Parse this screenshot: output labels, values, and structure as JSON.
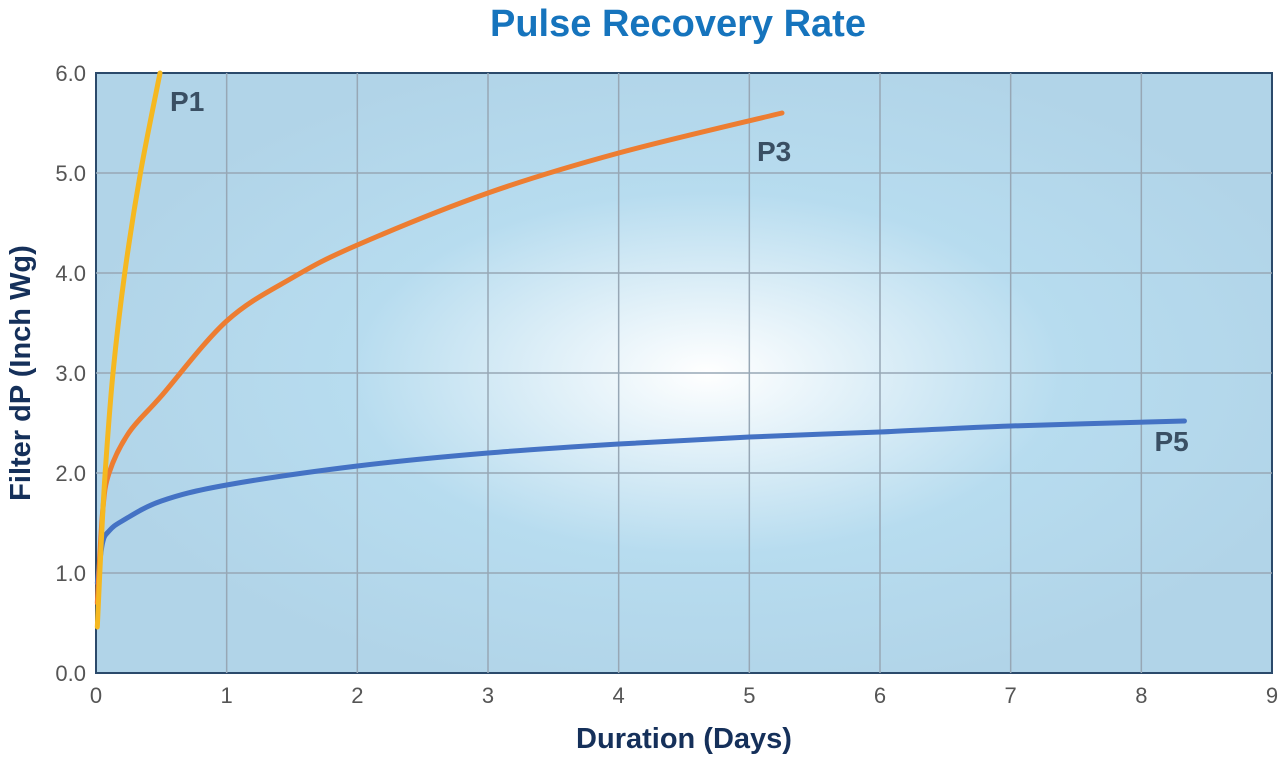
{
  "chart_data": {
    "type": "line",
    "title": "Pulse Recovery Rate",
    "xlabel": "Duration (Days)",
    "ylabel": "Filter dP (Inch Wg)",
    "xlim": [
      0,
      9
    ],
    "ylim": [
      0,
      6
    ],
    "xticks": [
      "0",
      "1",
      "2",
      "3",
      "4",
      "5",
      "6",
      "7",
      "8",
      "9"
    ],
    "yticks": [
      "0.0",
      "1.0",
      "2.0",
      "3.0",
      "4.0",
      "5.0",
      "6.0"
    ],
    "grid": true,
    "series": [
      {
        "name": "P1",
        "color": "#f5b820",
        "x": [
          0.01,
          0.04,
          0.07,
          0.13,
          0.22,
          0.34,
          0.49
        ],
        "y": [
          0.46,
          1.3,
          2.0,
          3.0,
          4.0,
          5.0,
          6.0
        ]
      },
      {
        "name": "P3",
        "color": "#ed7d31",
        "x": [
          0.01,
          0.05,
          0.1,
          0.25,
          0.5,
          1,
          1.5,
          2,
          3,
          4,
          5.25
        ],
        "y": [
          0.7,
          1.6,
          2.0,
          2.4,
          2.77,
          3.52,
          3.95,
          4.28,
          4.8,
          5.2,
          5.6
        ]
      },
      {
        "name": "P5",
        "color": "#4472c4",
        "x": [
          0.01,
          0.05,
          0.1,
          0.2,
          0.5,
          1,
          2,
          3,
          4,
          5,
          6,
          7,
          8.33
        ],
        "y": [
          0.9,
          1.3,
          1.42,
          1.52,
          1.72,
          1.88,
          2.07,
          2.2,
          2.29,
          2.36,
          2.41,
          2.47,
          2.52
        ]
      }
    ]
  }
}
